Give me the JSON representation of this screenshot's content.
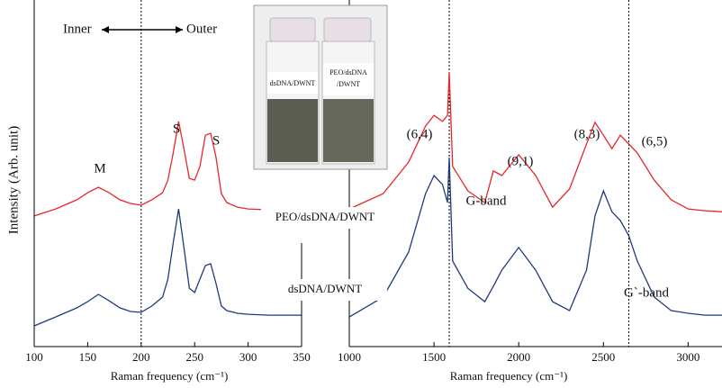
{
  "chart_data": [
    {
      "type": "line",
      "y_label": "Intensity (Arb. unit)",
      "x_label": "Raman frequency (cm⁻¹)",
      "annotations": [
        "Inner",
        "Outer",
        "M",
        "S",
        "S"
      ],
      "xlim": [
        100,
        350
      ],
      "xticks": [
        100,
        150,
        200,
        250,
        300,
        350
      ],
      "ylim": [
        0,
        100
      ],
      "vlines": [
        200
      ],
      "x": [
        100,
        120,
        140,
        150,
        160,
        170,
        180,
        190,
        200,
        210,
        220,
        225,
        230,
        235,
        240,
        245,
        250,
        255,
        260,
        265,
        270,
        275,
        280,
        290,
        300,
        320,
        350
      ],
      "series": [
        {
          "color": "#e8262b",
          "values": [
            41.2,
            43.5,
            46.5,
            48.8,
            50.6,
            48.8,
            46.5,
            45.3,
            44.7,
            46.5,
            48.8,
            52.9,
            61.8,
            72.1,
            63.2,
            53.5,
            52.9,
            57.4,
            67.6,
            68.2,
            60.3,
            48.5,
            45.6,
            44.1,
            43.5,
            43.2,
            42.9
          ]
        },
        {
          "color": "#1f3a7a",
          "values": [
            5.3,
            8.2,
            11.2,
            13.2,
            15.6,
            13.5,
            11.2,
            10,
            9.7,
            11.8,
            14.7,
            20.6,
            32.4,
            43.5,
            30.9,
            17.6,
            16.2,
            20.6,
            25,
            25.6,
            19.1,
            11.8,
            10.3,
            9.4,
            9.1,
            8.8,
            8.8
          ]
        }
      ]
    },
    {
      "type": "line",
      "x_label": "Raman frequency (cm⁻¹)",
      "annotations": [
        "(6,4)",
        "(9,1)",
        "(8,3)",
        "(6,5)",
        "G-band",
        "G`-band"
      ],
      "xlim": [
        1000,
        3200
      ],
      "xticks": [
        1000,
        1500,
        2000,
        2500,
        3000
      ],
      "ylim": [
        0,
        100
      ],
      "vlines": [
        1590,
        2650
      ],
      "x": [
        1000,
        1200,
        1350,
        1450,
        1500,
        1550,
        1580,
        1590,
        1610,
        1700,
        1800,
        1850,
        1900,
        2000,
        2100,
        2200,
        2300,
        2400,
        2450,
        2500,
        2550,
        2600,
        2650,
        2700,
        2800,
        2900,
        3000,
        3100,
        3200
      ],
      "series": [
        {
          "name": "PEO/dsDNA/DWNT",
          "color": "#e8262b",
          "values": [
            43.5,
            48.5,
            58.8,
            70.6,
            74.1,
            72.1,
            74.1,
            88.2,
            57.4,
            49.4,
            45.6,
            55.9,
            54.4,
            61.2,
            54.4,
            44.1,
            50,
            64.7,
            71.8,
            67.6,
            63.2,
            67.6,
            64.7,
            61.8,
            52.9,
            46.5,
            43.5,
            42.9,
            42.6
          ]
        },
        {
          "name": "dsDNA/DWNT",
          "color": "#1f3a7a",
          "values": [
            8.2,
            14.7,
            29.4,
            48.5,
            54.4,
            51.5,
            45.6,
            60.3,
            26.5,
            17.6,
            13.2,
            18.2,
            23.5,
            30.9,
            23.5,
            13.2,
            10.3,
            23.5,
            41.2,
            49.4,
            42.6,
            39.7,
            34.7,
            26.5,
            14.7,
            10.3,
            9.4,
            8.8,
            8.8
          ]
        }
      ]
    }
  ],
  "inset": {
    "labels": [
      "dsDNA/DWNT",
      "PEO/dsDNA",
      "/DWNT"
    ]
  }
}
